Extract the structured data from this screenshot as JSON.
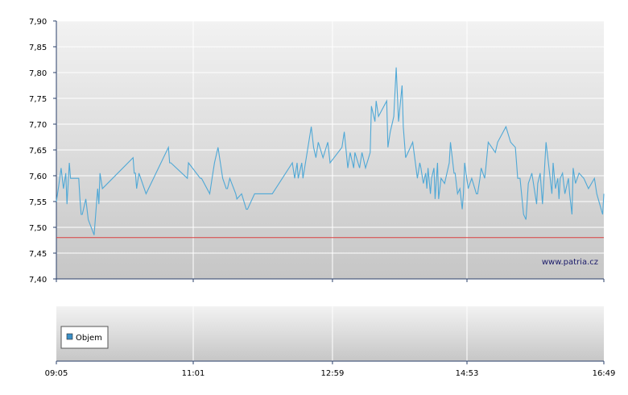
{
  "watermark": "www.patria.cz",
  "legend": {
    "volume_label": "Objem"
  },
  "colors": {
    "series": "#4fa8d6",
    "reference": "#d94040",
    "legend_swatch": "#3a8fc6",
    "grid": "#ffffff",
    "axis": "#2a3f6a"
  },
  "chart_data": [
    {
      "type": "line",
      "title": "",
      "xlabel": "",
      "ylabel": "",
      "ylim": [
        7.4,
        7.9
      ],
      "y_ticks": [
        "7,40",
        "7,45",
        "7,50",
        "7,55",
        "7,60",
        "7,65",
        "7,70",
        "7,75",
        "7,80",
        "7,85",
        "7,90"
      ],
      "x_tick_labels": [
        "09:05",
        "11:01",
        "12:59",
        "14:53",
        "16:49"
      ],
      "reference_line": 7.48,
      "grid": true,
      "x": [
        "09:05",
        "09:07",
        "09:09",
        "09:11",
        "09:13",
        "09:14",
        "09:16",
        "09:17",
        "09:18",
        "09:19",
        "09:24",
        "09:25",
        "09:26",
        "09:27",
        "09:30",
        "09:32",
        "09:37",
        "09:39",
        "09:40",
        "09:41",
        "09:42",
        "09:44",
        "10:10",
        "10:11",
        "10:12",
        "10:13",
        "10:15",
        "10:21",
        "10:40",
        "10:41",
        "10:42",
        "10:56",
        "10:57",
        "11:07",
        "11:08",
        "11:15",
        "11:17",
        "11:19",
        "11:22",
        "11:26",
        "11:29",
        "11:30",
        "11:32",
        "11:37",
        "11:38",
        "11:42",
        "11:46",
        "11:47",
        "11:53",
        "12:00",
        "12:08",
        "12:25",
        "12:27",
        "12:29",
        "12:30",
        "12:33",
        "12:34",
        "12:41",
        "12:43",
        "12:45",
        "12:47",
        "12:51",
        "12:55",
        "12:57",
        "13:07",
        "13:09",
        "13:12",
        "13:14",
        "13:17",
        "13:18",
        "13:22",
        "13:24",
        "13:27",
        "13:31",
        "13:32",
        "13:35",
        "13:36",
        "13:38",
        "13:45",
        "13:46",
        "13:48",
        "13:50",
        "13:51",
        "13:53",
        "13:55",
        "13:58",
        "13:59",
        "14:01",
        "14:07",
        "14:11",
        "14:13",
        "14:14",
        "14:16",
        "14:18",
        "14:19",
        "14:20",
        "14:22",
        "14:23",
        "14:25",
        "14:26",
        "14:28",
        "14:29",
        "14:31",
        "14:34",
        "14:38",
        "14:39",
        "14:42",
        "14:43",
        "14:45",
        "14:47",
        "14:49",
        "14:50",
        "14:51",
        "14:54",
        "14:57",
        "15:01",
        "15:02",
        "15:04",
        "15:05",
        "15:08",
        "15:09",
        "15:11",
        "15:17",
        "15:19",
        "15:26",
        "15:30",
        "15:34",
        "15:36",
        "15:38",
        "15:41",
        "15:43",
        "15:45",
        "15:48",
        "15:52",
        "15:53",
        "15:55",
        "15:57",
        "16:00",
        "16:03",
        "16:05",
        "16:06",
        "16:08",
        "16:10",
        "16:11",
        "16:12",
        "16:14",
        "16:16",
        "16:19",
        "16:20",
        "16:22",
        "16:23",
        "16:25",
        "16:28",
        "16:32",
        "16:36",
        "16:41",
        "16:43",
        "16:48",
        "16:49"
      ],
      "series": [
        {
          "values": [
            7.55,
            7.58,
            7.615,
            7.575,
            7.605,
            7.545,
            7.625,
            7.595,
            7.595,
            7.595,
            7.595,
            7.555,
            7.525,
            7.525,
            7.555,
            7.515,
            7.485,
            7.545,
            7.575,
            7.545,
            7.605,
            7.575,
            7.635,
            7.605,
            7.605,
            7.575,
            7.605,
            7.565,
            7.655,
            7.625,
            7.625,
            7.595,
            7.625,
            7.595,
            7.595,
            7.565,
            7.595,
            7.625,
            7.655,
            7.595,
            7.575,
            7.575,
            7.595,
            7.565,
            7.555,
            7.565,
            7.535,
            7.535,
            7.565,
            7.565,
            7.565,
            7.625,
            7.595,
            7.625,
            7.595,
            7.625,
            7.595,
            7.695,
            7.655,
            7.635,
            7.665,
            7.635,
            7.665,
            7.625,
            7.655,
            7.685,
            7.615,
            7.645,
            7.615,
            7.645,
            7.615,
            7.645,
            7.615,
            7.645,
            7.735,
            7.705,
            7.745,
            7.715,
            7.745,
            7.655,
            7.685,
            7.705,
            7.715,
            7.81,
            7.705,
            7.775,
            7.695,
            7.635,
            7.665,
            7.595,
            7.625,
            7.615,
            7.585,
            7.605,
            7.575,
            7.615,
            7.565,
            7.595,
            7.615,
            7.555,
            7.625,
            7.555,
            7.595,
            7.585,
            7.625,
            7.665,
            7.605,
            7.605,
            7.565,
            7.575,
            7.535,
            7.565,
            7.625,
            7.575,
            7.595,
            7.565,
            7.565,
            7.595,
            7.615,
            7.595,
            7.615,
            7.665,
            7.645,
            7.665,
            7.695,
            7.665,
            7.655,
            7.595,
            7.595,
            7.525,
            7.515,
            7.585,
            7.605,
            7.545,
            7.585,
            7.605,
            7.545,
            7.665,
            7.605,
            7.565,
            7.625,
            7.575,
            7.595,
            7.555,
            7.595,
            7.605,
            7.565,
            7.595,
            7.565,
            7.525,
            7.615,
            7.585,
            7.605,
            7.595,
            7.575,
            7.595,
            7.565,
            7.525,
            7.565
          ]
        }
      ]
    },
    {
      "type": "bar",
      "title": "",
      "legend_entries": [
        "Objem"
      ],
      "legend_position": "top-left",
      "series": []
    }
  ]
}
